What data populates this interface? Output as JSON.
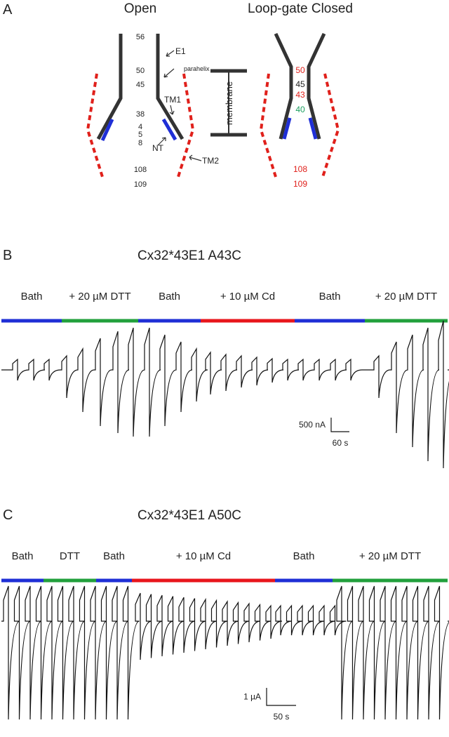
{
  "panel_a": {
    "label": "A",
    "open": {
      "title": "Open",
      "residues": [
        "56",
        "50",
        "45",
        "38",
        "4",
        "5",
        "8",
        "108",
        "109"
      ],
      "labels": {
        "e1": "E1",
        "parahelix": "parahelix",
        "tm1": "TM1",
        "nt": "NT",
        "tm2": "TM2"
      }
    },
    "membrane": "membrane",
    "closed": {
      "title": "Loop-gate Closed",
      "residues": [
        {
          "text": "50",
          "color": "#e0201b"
        },
        {
          "text": "45",
          "color": "#222222"
        },
        {
          "text": "43",
          "color": "#e0201b"
        },
        {
          "text": "40",
          "color": "#1a9e5f"
        },
        {
          "text": "108",
          "color": "#e0201b"
        },
        {
          "text": "109",
          "color": "#e0201b"
        }
      ]
    }
  },
  "panel_b": {
    "label": "B",
    "title": "Cx32*43E1 A43C",
    "conditions": [
      {
        "name": "Bath",
        "color": "#1f2fd6"
      },
      {
        "name": "+ 20 µM DTT",
        "color": "#22a03c"
      },
      {
        "name": "Bath",
        "color": "#1f2fd6"
      },
      {
        "name": "+ 10 µM Cd",
        "color": "#e8161c"
      },
      {
        "name": "Bath",
        "color": "#1f2fd6"
      },
      {
        "name": "+ 20 µM DTT",
        "color": "#22a03c"
      }
    ],
    "scale": {
      "y": "500 nA",
      "x": "60 s"
    }
  },
  "panel_c": {
    "label": "C",
    "title": "Cx32*43E1 A50C",
    "conditions": [
      {
        "name": "Bath",
        "color": "#1f2fd6"
      },
      {
        "name": "DTT",
        "color": "#22a03c"
      },
      {
        "name": "Bath",
        "color": "#1f2fd6"
      },
      {
        "name": "+ 10 µM Cd",
        "color": "#e8161c"
      },
      {
        "name": "Bath",
        "color": "#1f2fd6"
      },
      {
        "name": "+ 20 µM DTT",
        "color": "#22a03c"
      }
    ],
    "scale": {
      "y": "1 µA",
      "x": "50 s"
    }
  }
}
